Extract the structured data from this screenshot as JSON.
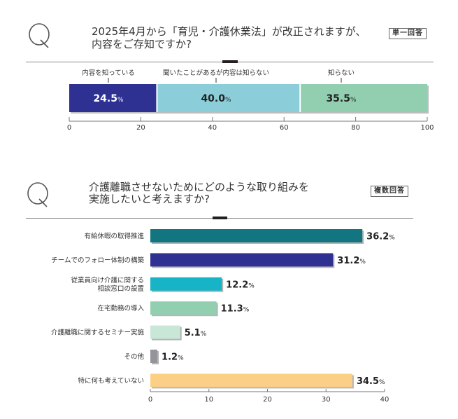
{
  "questions": [
    {
      "q_mark": "Q",
      "title_lines": [
        "2025年4月から「育児・介護休業法」が改正されますが、",
        "内容をご存知ですか?"
      ],
      "answer_type": "単一回答"
    },
    {
      "q_mark": "Q",
      "title_lines": [
        "介護離職させないためにどのような取り組みを",
        "実施したいと考えますか?"
      ],
      "answer_type": "複数回答"
    }
  ],
  "chart_data": [
    {
      "type": "bar",
      "orientation": "horizontal",
      "stacked": true,
      "title": "2025年4月から「育児・介護休業法」が改正されますが、内容をご存知ですか?",
      "xlabel": "",
      "ylabel": "",
      "categories": [
        "内容を知っている",
        "聞いたことがあるが内容は知らない",
        "知らない"
      ],
      "values": [
        24.5,
        40.0,
        35.5
      ],
      "value_labels": [
        "24.5",
        "40.0",
        "35.5"
      ],
      "unit": "%",
      "xlim": [
        0,
        100
      ],
      "xticks": [
        0,
        20,
        40,
        60,
        80,
        100
      ],
      "xtick_labels": [
        "0",
        "20",
        "40",
        "60",
        "80",
        "100"
      ],
      "grid": false,
      "legend": "none (labels above segments)",
      "colors": [
        "#2e3192",
        "#8bcdd8",
        "#92cfb0"
      ]
    },
    {
      "type": "bar",
      "orientation": "horizontal",
      "stacked": false,
      "title": "介護離職させないためにどのような取り組みを実施したいと考えますか?",
      "xlabel": "",
      "ylabel": "",
      "categories": [
        "有給休暇の取得推進",
        "チームでのフォロー体制の構築",
        "従業員向け介護に関する相談窓口の設置",
        "在宅勤務の導入",
        "介護離職に関するセミナー実施",
        "その他",
        "特に何も考えていない"
      ],
      "category_label_lines": [
        [
          "有給休暇の取得推進"
        ],
        [
          "チームでのフォロー体制の構築"
        ],
        [
          "従業員向け介護に関する",
          "相談窓口の設置"
        ],
        [
          "在宅勤務の導入"
        ],
        [
          "介護離職に関するセミナー実施"
        ],
        [
          "その他"
        ],
        [
          "特に何も考えていない"
        ]
      ],
      "values": [
        36.2,
        31.2,
        12.2,
        11.3,
        5.1,
        1.2,
        34.5
      ],
      "value_labels": [
        "36.2",
        "31.2",
        "12.2",
        "11.3",
        "5.1",
        "1.2",
        "34.5"
      ],
      "unit": "%",
      "xlim": [
        0,
        40
      ],
      "xticks": [
        0,
        10,
        20,
        30,
        40
      ],
      "xtick_labels": [
        "0",
        "10",
        "20",
        "30",
        "40"
      ],
      "grid": false,
      "legend": "none",
      "colors": [
        "#127580",
        "#2e3192",
        "#17b3c6",
        "#92cfb0",
        "#c9e7d7",
        "#949599",
        "#fccf86"
      ]
    }
  ]
}
